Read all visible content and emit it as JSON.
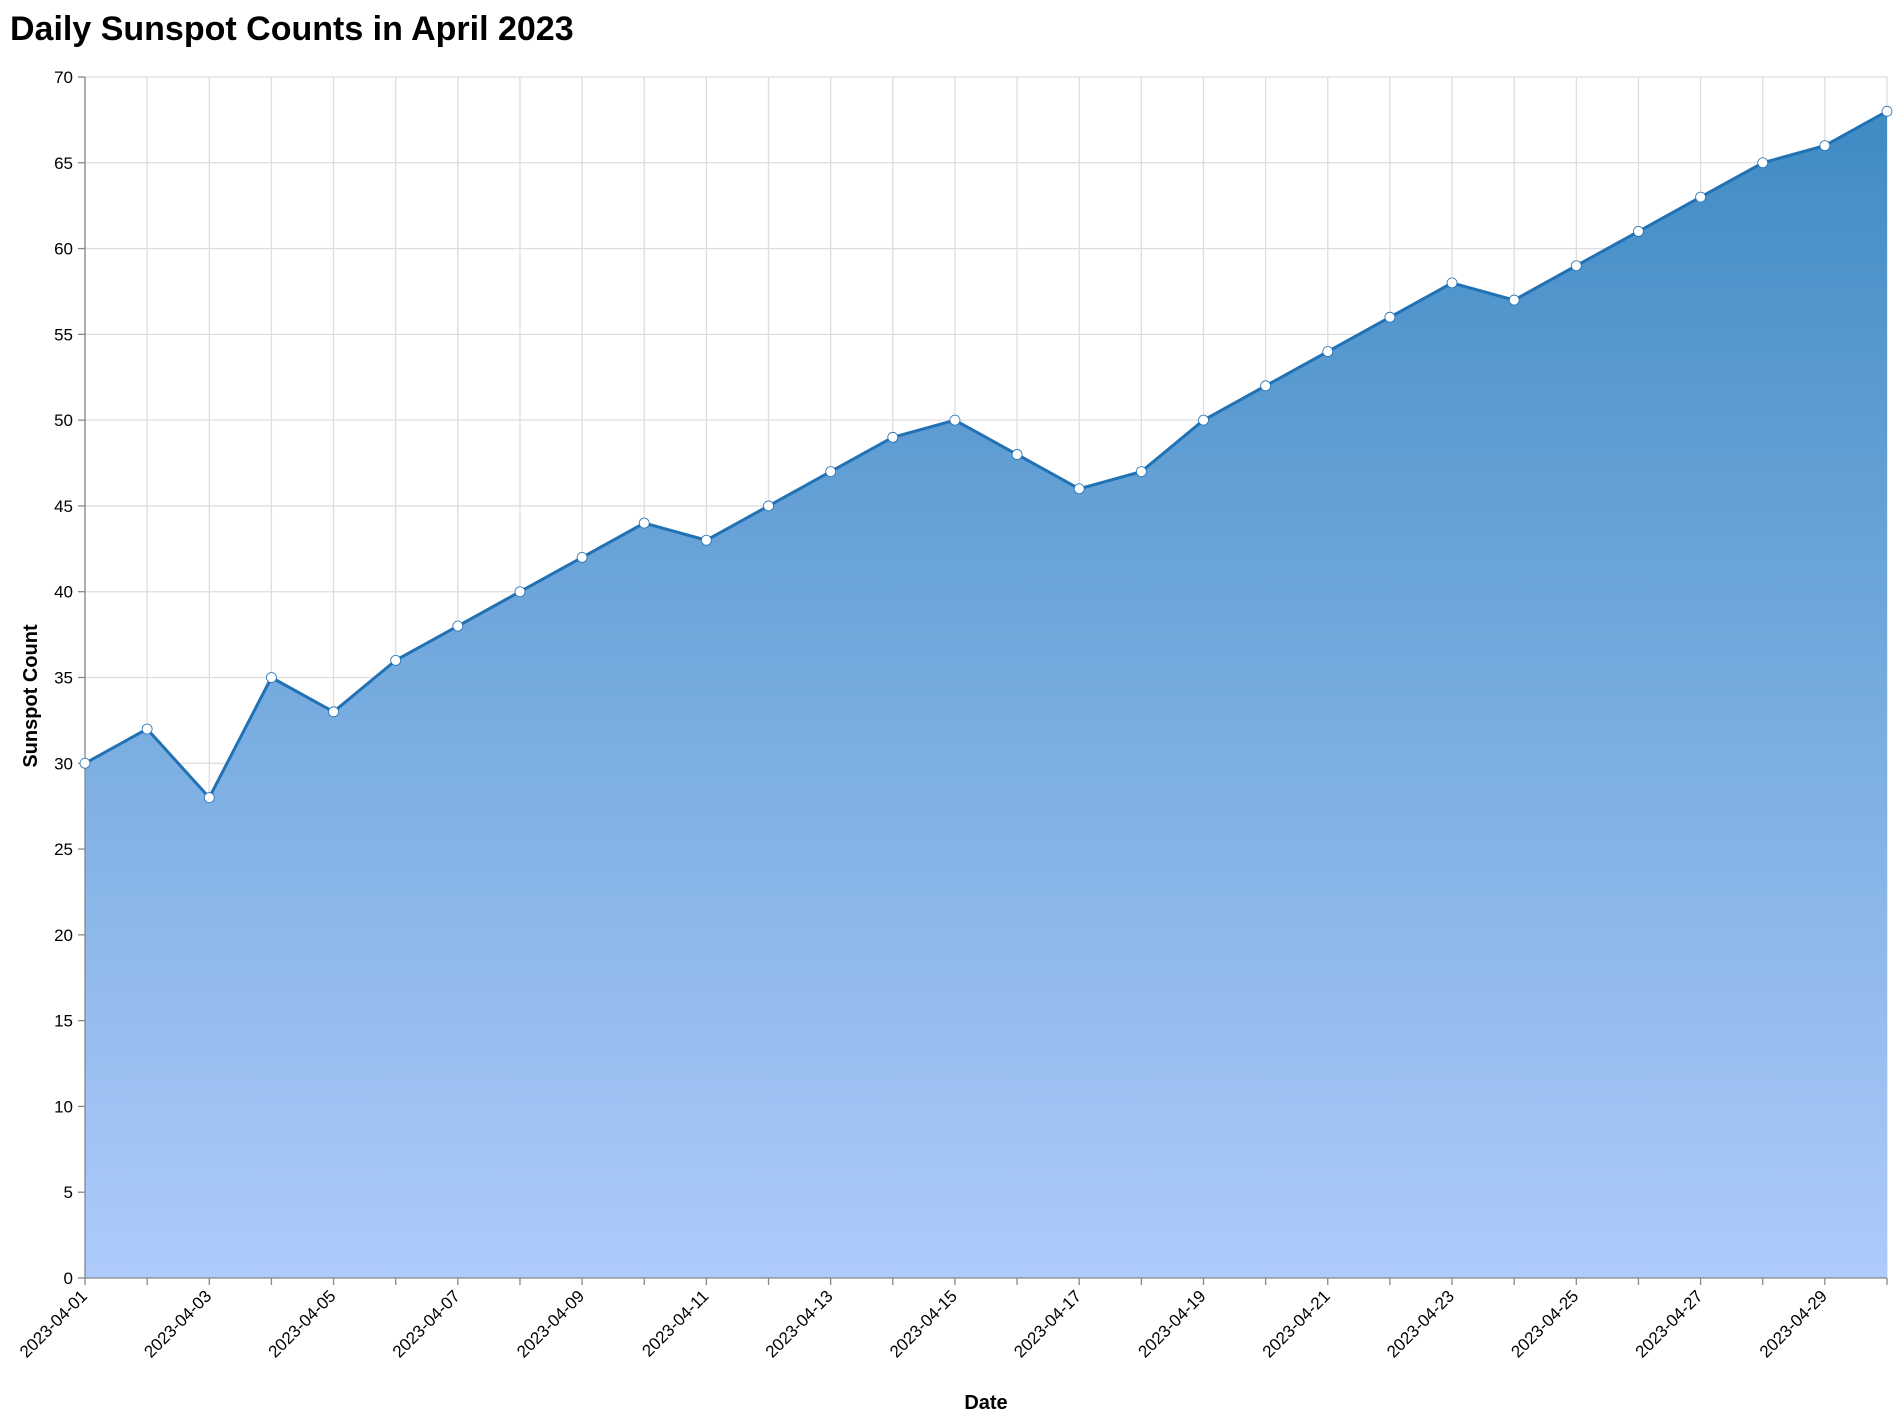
{
  "chart_data": {
    "type": "area",
    "title": "Daily Sunspot Counts in April 2023",
    "xlabel": "Date",
    "ylabel": "Sunspot Count",
    "ylim": [
      0,
      70
    ],
    "y_ticks": [
      0,
      5,
      10,
      15,
      20,
      25,
      30,
      35,
      40,
      45,
      50,
      55,
      60,
      65,
      70
    ],
    "x_tick_labels": [
      "2023-04-01",
      "2023-04-03",
      "2023-04-05",
      "2023-04-07",
      "2023-04-09",
      "2023-04-11",
      "2023-04-13",
      "2023-04-15",
      "2023-04-17",
      "2023-04-19",
      "2023-04-21",
      "2023-04-23",
      "2023-04-25",
      "2023-04-27",
      "2023-04-29"
    ],
    "grid": true,
    "colors": {
      "line": "#2171b5",
      "fill_top": "#3f8bc4",
      "fill_bottom": "#aecbfa",
      "point": "#ffffff"
    },
    "series": [
      {
        "x": [
          "2023-04-01",
          "2023-04-02",
          "2023-04-03",
          "2023-04-04",
          "2023-04-05",
          "2023-04-06",
          "2023-04-07",
          "2023-04-08",
          "2023-04-09",
          "2023-04-10",
          "2023-04-11",
          "2023-04-12",
          "2023-04-13",
          "2023-04-14",
          "2023-04-15",
          "2023-04-16",
          "2023-04-17",
          "2023-04-18",
          "2023-04-19",
          "2023-04-20",
          "2023-04-21",
          "2023-04-22",
          "2023-04-23",
          "2023-04-24",
          "2023-04-25",
          "2023-04-26",
          "2023-04-27",
          "2023-04-28",
          "2023-04-29",
          "2023-04-30"
        ],
        "values": [
          30,
          32,
          28,
          35,
          33,
          36,
          38,
          40,
          42,
          44,
          43,
          45,
          47,
          49,
          50,
          48,
          46,
          47,
          50,
          52,
          54,
          56,
          58,
          57,
          59,
          61,
          63,
          65,
          66,
          68
        ]
      }
    ]
  }
}
